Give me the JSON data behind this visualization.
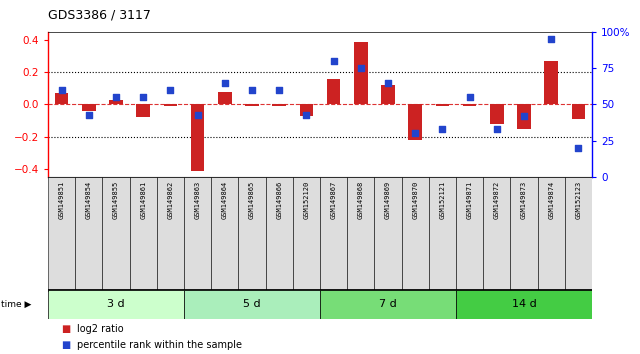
{
  "title": "GDS3386 / 3117",
  "samples": [
    "GSM149851",
    "GSM149854",
    "GSM149855",
    "GSM149861",
    "GSM149862",
    "GSM149863",
    "GSM149864",
    "GSM149865",
    "GSM149866",
    "GSM152120",
    "GSM149867",
    "GSM149868",
    "GSM149869",
    "GSM149870",
    "GSM152121",
    "GSM149871",
    "GSM149872",
    "GSM149873",
    "GSM149874",
    "GSM152123"
  ],
  "log2_ratio": [
    0.07,
    -0.04,
    0.025,
    -0.08,
    -0.01,
    -0.41,
    0.08,
    -0.01,
    -0.01,
    -0.07,
    0.16,
    0.39,
    0.12,
    -0.22,
    -0.01,
    -0.01,
    -0.12,
    -0.15,
    0.27,
    -0.09
  ],
  "percentile_rank": [
    60,
    43,
    55,
    55,
    60,
    43,
    65,
    60,
    60,
    43,
    80,
    75,
    65,
    30,
    33,
    55,
    33,
    42,
    95,
    20
  ],
  "groups": [
    {
      "label": "3 d",
      "start": 0,
      "end": 5
    },
    {
      "label": "5 d",
      "start": 5,
      "end": 10
    },
    {
      "label": "7 d",
      "start": 10,
      "end": 15
    },
    {
      "label": "14 d",
      "start": 15,
      "end": 20
    }
  ],
  "group_colors": [
    "#ccffcc",
    "#aaeebb",
    "#77dd77",
    "#44cc44"
  ],
  "ylim_left": [
    -0.45,
    0.45
  ],
  "ylim_right": [
    0,
    100
  ],
  "yticks_left": [
    -0.4,
    -0.2,
    0.0,
    0.2,
    0.4
  ],
  "yticks_right": [
    0,
    25,
    50,
    75,
    100
  ],
  "ytick_labels_right": [
    "0",
    "25",
    "50",
    "75",
    "100%"
  ],
  "bar_color": "#cc2222",
  "dot_color": "#2244cc",
  "bg_color": "#ffffff",
  "zero_line_color": "#dd3333",
  "grid_color": "#000000",
  "legend_items": [
    "log2 ratio",
    "percentile rank within the sample"
  ]
}
